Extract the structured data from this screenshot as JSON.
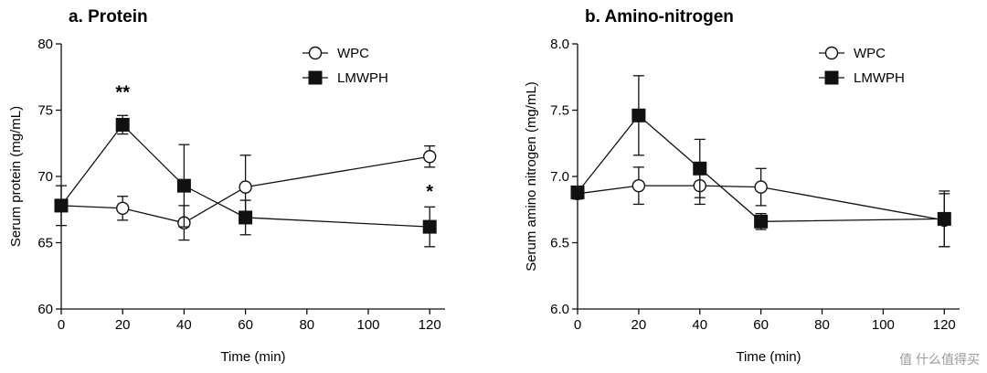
{
  "chart_data": [
    {
      "type": "line",
      "title": "a. Protein",
      "xlabel": "Time (min)",
      "ylabel": "Serum protein (mg/mL)",
      "xlim": [
        0,
        125
      ],
      "ylim": [
        60,
        80
      ],
      "xticks": [
        0,
        20,
        40,
        60,
        80,
        100,
        120
      ],
      "yticks": [
        60,
        65,
        70,
        75,
        80
      ],
      "ytick_labels": [
        "60",
        "65",
        "70",
        "75",
        "80"
      ],
      "legend_position": "top-right",
      "series": [
        {
          "name": "WPC",
          "marker": "open-circle",
          "x": [
            0,
            20,
            40,
            60,
            120
          ],
          "y": [
            67.8,
            67.6,
            66.5,
            69.2,
            71.5
          ],
          "err": [
            0,
            0.9,
            1.3,
            2.4,
            0.8
          ]
        },
        {
          "name": "LMWPH",
          "marker": "filled-square",
          "x": [
            0,
            20,
            40,
            60,
            120
          ],
          "y": [
            67.8,
            73.9,
            69.3,
            66.9,
            66.2
          ],
          "err": [
            1.5,
            0.7,
            3.1,
            1.3,
            1.5
          ]
        }
      ],
      "annotations": [
        {
          "text": "**",
          "x": 20,
          "y": 75.9
        },
        {
          "text": "*",
          "x": 120,
          "y": 68.4
        }
      ]
    },
    {
      "type": "line",
      "title": "b. Amino-nitrogen",
      "xlabel": "Time (min)",
      "ylabel": "Serum amino nitrogen (mg/mL)",
      "xlim": [
        0,
        125
      ],
      "ylim": [
        6.0,
        8.0
      ],
      "xticks": [
        0,
        20,
        40,
        60,
        80,
        100,
        120
      ],
      "yticks": [
        6.0,
        6.5,
        7.0,
        7.5,
        8.0
      ],
      "ytick_labels": [
        "6.0",
        "6.5",
        "7.0",
        "7.5",
        "8.0"
      ],
      "legend_position": "top-right",
      "series": [
        {
          "name": "WPC",
          "marker": "open-circle",
          "x": [
            0,
            20,
            40,
            60,
            120
          ],
          "y": [
            6.87,
            6.93,
            6.93,
            6.92,
            6.67
          ],
          "err": [
            0.04,
            0.14,
            0.14,
            0.14,
            0.2
          ]
        },
        {
          "name": "LMWPH",
          "marker": "filled-square",
          "x": [
            0,
            20,
            40,
            60,
            120
          ],
          "y": [
            6.88,
            7.46,
            7.06,
            6.66,
            6.68
          ],
          "err": [
            0.03,
            0.3,
            0.22,
            0.06,
            0.21
          ]
        }
      ],
      "annotations": []
    }
  ],
  "watermark": "值 什么值得买"
}
